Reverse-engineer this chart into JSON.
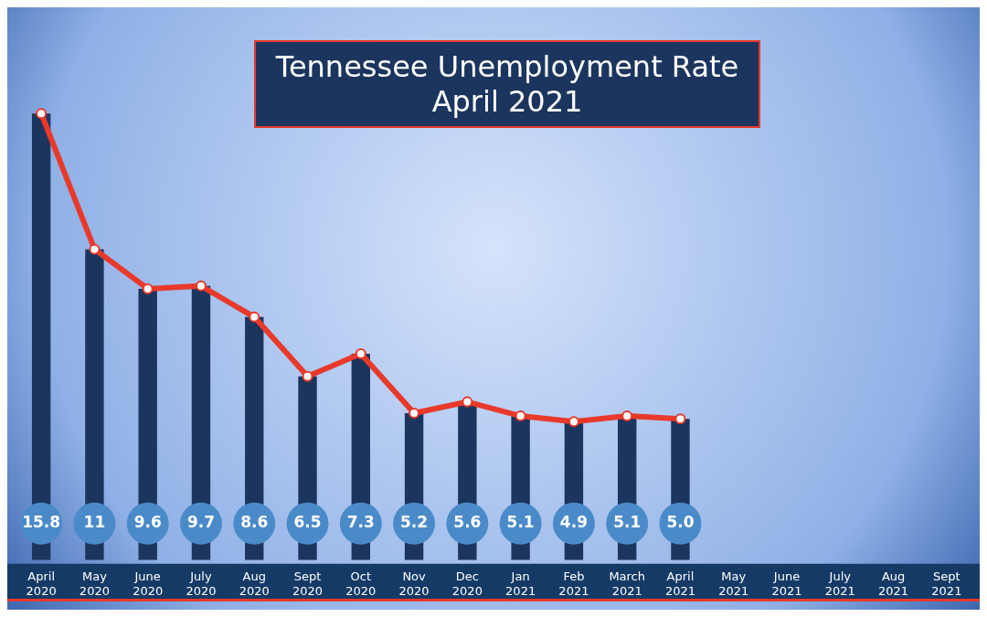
{
  "chart_data": {
    "type": "bar",
    "title": "Tennessee Unemployment Rate",
    "subtitle": "April 2021",
    "categories": [
      "April 2020",
      "May 2020",
      "June 2020",
      "July 2020",
      "Aug 2020",
      "Sept 2020",
      "Oct 2020",
      "Nov 2020",
      "Dec 2020",
      "Jan 2021",
      "Feb 2021",
      "March 2021",
      "April 2021",
      "May 2021",
      "June 2021",
      "July 2021",
      "Aug 2021",
      "Sept 2021"
    ],
    "series": [
      {
        "color": "#1c355e",
        "values": [
          15.8,
          11,
          9.6,
          9.7,
          8.6,
          6.5,
          7.3,
          5.2,
          5.6,
          5.1,
          4.9,
          5.1,
          5.0,
          null,
          null,
          null,
          null,
          null
        ],
        "value_labels": [
          "15.8",
          "11",
          "9.6",
          "9.7",
          "8.6",
          "6.5",
          "7.3",
          "5.2",
          "5.6",
          "5.1",
          "4.9",
          "5.1",
          "5.0",
          null,
          null,
          null,
          null,
          null
        ]
      },
      {
        "type": "line",
        "color": "#e8392b",
        "marker": "circle",
        "values": [
          15.8,
          11,
          9.6,
          9.7,
          8.6,
          6.5,
          7.3,
          5.2,
          5.6,
          5.1,
          4.9,
          5.1,
          5.0,
          null,
          null,
          null,
          null,
          null
        ]
      }
    ],
    "tick_labels": "x",
    "grid": false,
    "legend": false
  }
}
